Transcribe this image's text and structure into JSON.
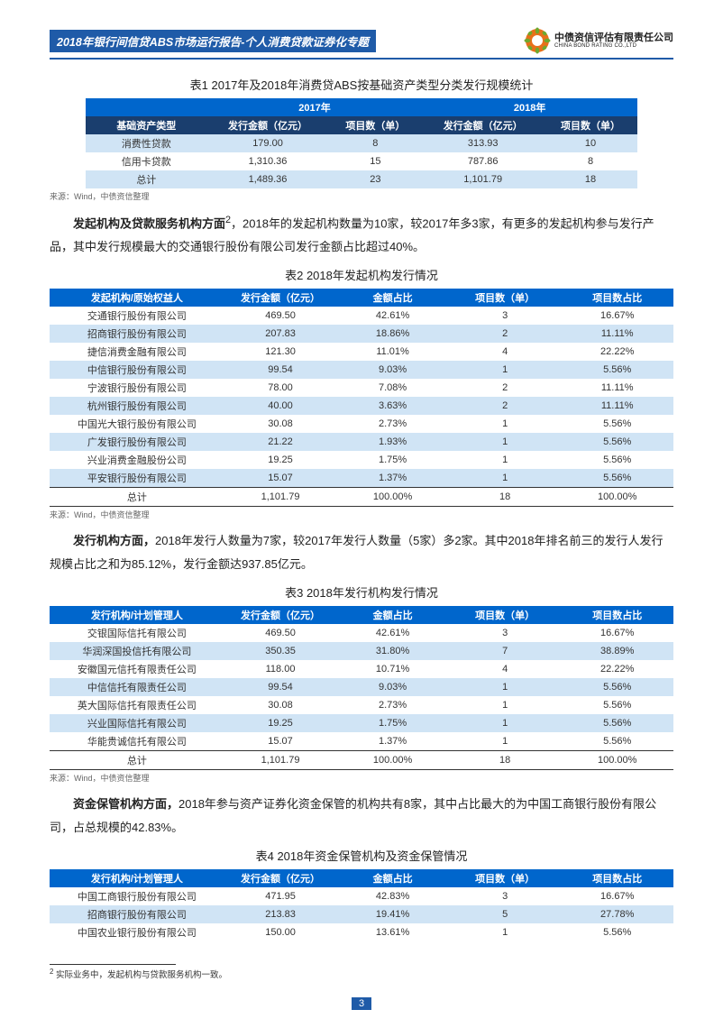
{
  "header": {
    "title": "2018年银行间信贷ABS市场运行报告-个人消费贷款证券化专题",
    "logo_cn": "中债资信评估有限责任公司",
    "logo_en": "CHINA BOND RATING CO.,LTD"
  },
  "table1": {
    "title": "表1  2017年及2018年消费贷ABS按基础资产类型分类发行规模统计",
    "year1": "2017年",
    "year2": "2018年",
    "col1": "基础资产类型",
    "col2": "发行金额（亿元）",
    "col3": "项目数（单）",
    "col4": "发行金额（亿元）",
    "col5": "项目数（单）",
    "rows": [
      {
        "c1": "消费性贷款",
        "c2": "179.00",
        "c3": "8",
        "c4": "313.93",
        "c5": "10"
      },
      {
        "c1": "信用卡贷款",
        "c2": "1,310.36",
        "c3": "15",
        "c4": "787.86",
        "c5": "8"
      },
      {
        "c1": "总计",
        "c2": "1,489.36",
        "c3": "23",
        "c4": "1,101.79",
        "c5": "18"
      }
    ],
    "source": "来源：Wind，中债资信整理"
  },
  "para1": {
    "lead": "发起机构及贷款服务机构方面",
    "sup": "2",
    "text": "，2018年的发起机构数量为10家，较2017年多3家，有更多的发起机构参与发行产品，其中发行规模最大的交通银行股份有限公司发行金额占比超过40%。"
  },
  "table2": {
    "title": "表2  2018年发起机构发行情况",
    "h1": "发起机构/原始权益人",
    "h2": "发行金额（亿元）",
    "h3": "金额占比",
    "h4": "项目数（单）",
    "h5": "项目数占比",
    "rows": [
      {
        "c1": "交通银行股份有限公司",
        "c2": "469.50",
        "c3": "42.61%",
        "c4": "3",
        "c5": "16.67%"
      },
      {
        "c1": "招商银行股份有限公司",
        "c2": "207.83",
        "c3": "18.86%",
        "c4": "2",
        "c5": "11.11%"
      },
      {
        "c1": "捷信消费金融有限公司",
        "c2": "121.30",
        "c3": "11.01%",
        "c4": "4",
        "c5": "22.22%"
      },
      {
        "c1": "中信银行股份有限公司",
        "c2": "99.54",
        "c3": "9.03%",
        "c4": "1",
        "c5": "5.56%"
      },
      {
        "c1": "宁波银行股份有限公司",
        "c2": "78.00",
        "c3": "7.08%",
        "c4": "2",
        "c5": "11.11%"
      },
      {
        "c1": "杭州银行股份有限公司",
        "c2": "40.00",
        "c3": "3.63%",
        "c4": "2",
        "c5": "11.11%"
      },
      {
        "c1": "中国光大银行股份有限公司",
        "c2": "30.08",
        "c3": "2.73%",
        "c4": "1",
        "c5": "5.56%"
      },
      {
        "c1": "广发银行股份有限公司",
        "c2": "21.22",
        "c3": "1.93%",
        "c4": "1",
        "c5": "5.56%"
      },
      {
        "c1": "兴业消费金融股份公司",
        "c2": "19.25",
        "c3": "1.75%",
        "c4": "1",
        "c5": "5.56%"
      },
      {
        "c1": "平安银行股份有限公司",
        "c2": "15.07",
        "c3": "1.37%",
        "c4": "1",
        "c5": "5.56%"
      }
    ],
    "total": {
      "c1": "总计",
      "c2": "1,101.79",
      "c3": "100.00%",
      "c4": "18",
      "c5": "100.00%"
    },
    "source": "来源：Wind，中债资信整理"
  },
  "para2": {
    "lead": "发行机构方面，",
    "text": "2018年发行人数量为7家，较2017年发行人数量（5家）多2家。其中2018年排名前三的发行人发行规模占比之和为85.12%，发行金额达937.85亿元。"
  },
  "table3": {
    "title": "表3  2018年发行机构发行情况",
    "h1": "发行机构/计划管理人",
    "h2": "发行金额（亿元）",
    "h3": "金额占比",
    "h4": "项目数（单）",
    "h5": "项目数占比",
    "rows": [
      {
        "c1": "交银国际信托有限公司",
        "c2": "469.50",
        "c3": "42.61%",
        "c4": "3",
        "c5": "16.67%"
      },
      {
        "c1": "华润深国投信托有限公司",
        "c2": "350.35",
        "c3": "31.80%",
        "c4": "7",
        "c5": "38.89%"
      },
      {
        "c1": "安徽国元信托有限责任公司",
        "c2": "118.00",
        "c3": "10.71%",
        "c4": "4",
        "c5": "22.22%"
      },
      {
        "c1": "中信信托有限责任公司",
        "c2": "99.54",
        "c3": "9.03%",
        "c4": "1",
        "c5": "5.56%"
      },
      {
        "c1": "英大国际信托有限责任公司",
        "c2": "30.08",
        "c3": "2.73%",
        "c4": "1",
        "c5": "5.56%"
      },
      {
        "c1": "兴业国际信托有限公司",
        "c2": "19.25",
        "c3": "1.75%",
        "c4": "1",
        "c5": "5.56%"
      },
      {
        "c1": "华能贵诚信托有限公司",
        "c2": "15.07",
        "c3": "1.37%",
        "c4": "1",
        "c5": "5.56%"
      }
    ],
    "total": {
      "c1": "总计",
      "c2": "1,101.79",
      "c3": "100.00%",
      "c4": "18",
      "c5": "100.00%"
    },
    "source": "来源：Wind，中债资信整理"
  },
  "para3": {
    "lead": "资金保管机构方面，",
    "text": "2018年参与资产证券化资金保管的机构共有8家，其中占比最大的为中国工商银行股份有限公司，占总规模的42.83%。"
  },
  "table4": {
    "title": "表4  2018年资金保管机构及资金保管情况",
    "h1": "发行机构/计划管理人",
    "h2": "发行金额（亿元）",
    "h3": "金额占比",
    "h4": "项目数（单）",
    "h5": "项目数占比",
    "rows": [
      {
        "c1": "中国工商银行股份有限公司",
        "c2": "471.95",
        "c3": "42.83%",
        "c4": "3",
        "c5": "16.67%"
      },
      {
        "c1": "招商银行股份有限公司",
        "c2": "213.83",
        "c3": "19.41%",
        "c4": "5",
        "c5": "27.78%"
      },
      {
        "c1": "中国农业银行股份有限公司",
        "c2": "150.00",
        "c3": "13.61%",
        "c4": "1",
        "c5": "5.56%"
      }
    ]
  },
  "footnote": {
    "num": "2",
    "text": " 实际业务中，发起机构与贷款服务机构一致。"
  },
  "page_number": "3",
  "colors": {
    "header_blue": "#1f5ba8",
    "th_primary": "#0066cc",
    "th_dark": "#1a3e6e",
    "row_alt": "#d0e4f5",
    "logo_orange": "#e8701a",
    "logo_green": "#6fa82e"
  }
}
